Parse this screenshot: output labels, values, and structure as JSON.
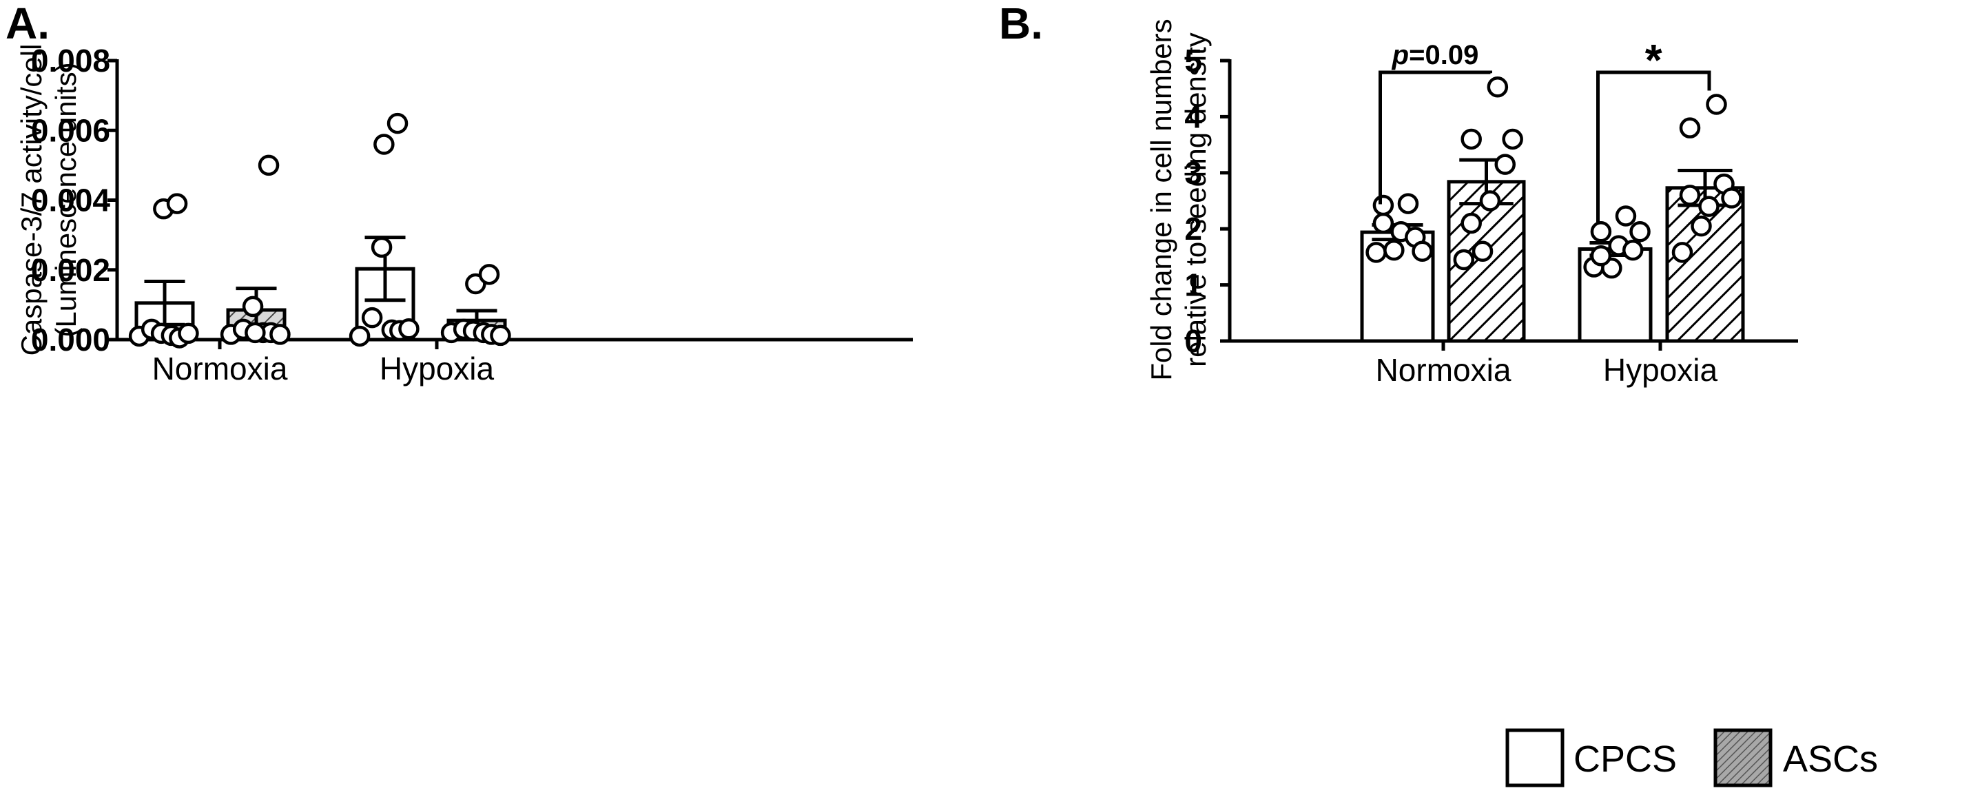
{
  "chart_data": [
    {
      "panel_label": "A.",
      "type": "bar",
      "title": "",
      "ylabel_lines": [
        "Caspase-3/7 activity/cell",
        "(Luminescence units)"
      ],
      "xlabel": "",
      "ylim": [
        0,
        0.008
      ],
      "yticks": [
        "0.000",
        "0.002",
        "0.004",
        "0.006",
        "0.008"
      ],
      "categories": [
        "Normoxia",
        "Hypoxia"
      ],
      "series": [
        {
          "name": "CPCS",
          "pattern": "open",
          "values": [
            0.00105,
            0.00203
          ],
          "sem": [
            0.00062,
            0.0009
          ],
          "points": [
            [
              0.0001,
              0.0003,
              0.00018,
              0.00012,
              5e-05,
              0.00018,
              0.00375,
              0.0039
            ],
            [
              0.0001,
              0.00063,
              0.00265,
              0.00028,
              0.00026,
              0.00031,
              0.0056,
              0.0062
            ]
          ]
        },
        {
          "name": "ASCs",
          "pattern": "hatch-left",
          "values": [
            0.00085,
            0.00055
          ],
          "sem": [
            0.00062,
            0.00028
          ],
          "points": [
            [
              0.00015,
              0.0003,
              0.00095,
              0.0002,
              0.0002,
              0.00015,
              0.0002,
              0.005
            ],
            [
              0.0002,
              0.0003,
              0.00025,
              0.0002,
              0.00015,
              0.00012,
              0.0016,
              0.00187
            ]
          ]
        }
      ]
    },
    {
      "panel_label": "B.",
      "type": "bar",
      "title": "",
      "ylabel_lines": [
        "Fold change in  cell numbers",
        "relative to seeding density"
      ],
      "xlabel": "",
      "ylim": [
        0,
        5
      ],
      "yticks": [
        "0",
        "1",
        "2",
        "3",
        "4",
        "5"
      ],
      "categories": [
        "Normoxia",
        "Hypoxia"
      ],
      "series": [
        {
          "name": "CPCS",
          "pattern": "open",
          "values": [
            1.94,
            1.64
          ],
          "sem": [
            0.13,
            0.11
          ],
          "points": [
            [
              1.58,
              1.62,
              2.1,
              1.95,
              1.85,
              1.6,
              2.42,
              2.45
            ],
            [
              1.32,
              1.3,
              1.52,
              1.7,
              1.62,
              1.95,
              1.95,
              2.23
            ]
          ]
        },
        {
          "name": "ASCs",
          "pattern": "hatch-right",
          "values": [
            2.84,
            2.73
          ],
          "sem": [
            0.39,
            0.31
          ],
          "points": [
            [
              1.45,
              1.6,
              2.1,
              2.5,
              3.15,
              3.6,
              3.6,
              4.53
            ],
            [
              1.58,
              2.05,
              2.6,
              2.4,
              2.8,
              2.55,
              3.8,
              4.22
            ]
          ]
        }
      ],
      "annotations": [
        {
          "category": "Normoxia",
          "text_italic": "p",
          "text": "=0.09"
        },
        {
          "category": "Hypoxia",
          "text": "*"
        }
      ]
    }
  ],
  "legend": {
    "placement": "bottom-right",
    "entries": [
      {
        "label": "CPCS",
        "swatch": "open"
      },
      {
        "label": "ASCs",
        "swatch": "grey-hatched"
      }
    ]
  }
}
